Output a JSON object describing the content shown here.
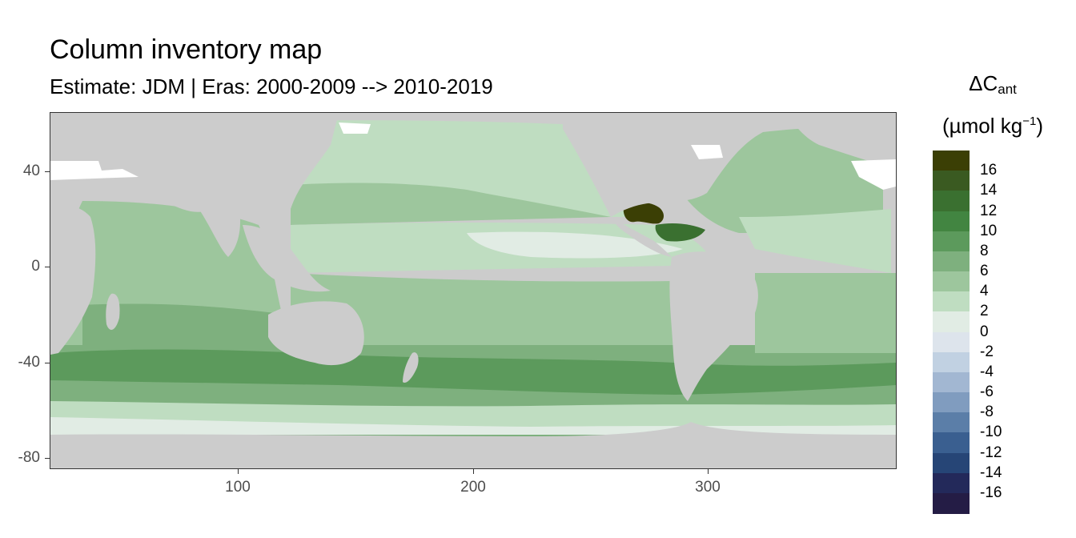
{
  "title": "Column inventory map",
  "subtitle": "Estimate: JDM  | Eras: 2000-2009 --> 2010-2019",
  "legend": {
    "title_main": "ΔC",
    "title_sub": "ant",
    "unit_prefix": "(µmol kg",
    "unit_sup": "−1",
    "unit_suffix": ")",
    "labels": [
      "16",
      "14",
      "12",
      "10",
      "8",
      "6",
      "4",
      "2",
      "0",
      "-2",
      "-4",
      "-6",
      "-8",
      "-10",
      "-12",
      "-14",
      "-16"
    ],
    "colors": [
      "#3b3f05",
      "#3a5a21",
      "#3a7030",
      "#428541",
      "#5c9a5c",
      "#7eb07e",
      "#9dc69d",
      "#bfddc1",
      "#e1ece4",
      "#dde4ec",
      "#c1d1e2",
      "#a2b7d2",
      "#809cbf",
      "#5b7ea8",
      "#3a5f90",
      "#264576",
      "#23295a",
      "#241c45"
    ]
  },
  "axes": {
    "x_ticks": [
      "100",
      "200",
      "300"
    ],
    "y_ticks": [
      "40",
      "0",
      "-40",
      "-80"
    ],
    "x_range": [
      20,
      380
    ],
    "y_range": [
      -85,
      65
    ]
  },
  "colors": {
    "land": "#cccccc",
    "sea_ice": "#ffffff",
    "panel_border": "#333333"
  },
  "map_regions": [
    {
      "name": "north-pacific",
      "value": 3
    },
    {
      "name": "tropical-pacific",
      "value": 1
    },
    {
      "name": "north-atlantic",
      "value": 3
    },
    {
      "name": "gulf-of-mexico-caribbean",
      "value": 16
    },
    {
      "name": "indian-ocean",
      "value": 5
    },
    {
      "name": "southern-ocean-band",
      "value": 9
    },
    {
      "name": "antarctic-margin",
      "value": 1
    }
  ]
}
